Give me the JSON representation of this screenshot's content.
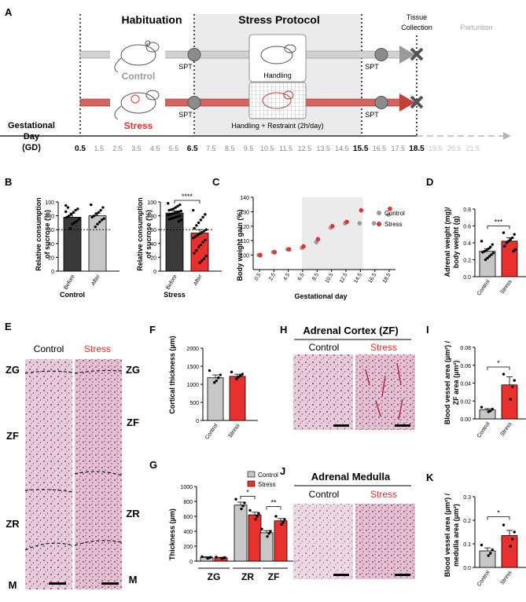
{
  "colors": {
    "control": "#c7c7c7",
    "stress": "#e8302c",
    "dark": "#3a3a3a",
    "shade": "#ebebeb",
    "pinkText": "#e0302a"
  },
  "panelA": {
    "letter": "A",
    "phase_habituation": "Habituation",
    "phase_stress": "Stress Protocol",
    "tissue": "Tissue",
    "collection": "Collection",
    "parturition": "Parturition",
    "control_label": "Control",
    "stress_label": "Stress",
    "spt": "SPT",
    "handling": "Handling",
    "handling_restraint": "Handling + Restraint (2h/day)",
    "gd_title1": "Gestational",
    "gd_title2": "Day",
    "gd_title3": "(GD)",
    "ticks": [
      "0.5",
      "1.5",
      "2.5",
      "3.5",
      "4.5",
      "5.5",
      "6.5",
      "7.5",
      "8.5",
      "9.5",
      "10.5",
      "11.5",
      "12.5",
      "13.5",
      "14.5",
      "15.5",
      "16.5",
      "17.5",
      "18.5",
      "19.5",
      "20.5",
      "21.5"
    ]
  },
  "panelB": {
    "letter": "B",
    "ylabel1": "Relative consumption",
    "ylabel2": "of sucrose (%)",
    "yticks": [
      "0",
      "20",
      "40",
      "60",
      "80",
      "100"
    ],
    "control_group": "Control",
    "stress_group": "Stress",
    "before": "Before",
    "after": "After",
    "sig": "****"
  },
  "panelC": {
    "letter": "C",
    "ylabel": "Body weight gain (%)",
    "xlabel": "Gestational day",
    "legend_control": "Control",
    "legend_stress": "Stress",
    "yticks": [
      "100",
      "110",
      "120",
      "130",
      "140"
    ],
    "xticks": [
      "0.5",
      "2.5",
      "4.5",
      "6.5",
      "8.5",
      "10.5",
      "12.5",
      "14.5",
      "16.5",
      "18.5"
    ]
  },
  "panelD": {
    "letter": "D",
    "ylabel1": "Adrenal weight (mg)/",
    "ylabel2": "body weight (g)",
    "yticks": [
      "0.0",
      "0.2",
      "0.4",
      "0.6",
      "0.8"
    ],
    "control": "Control",
    "stress": "Stress",
    "sig": "***"
  },
  "panelE": {
    "letter": "E",
    "control": "Control",
    "stress": "Stress",
    "zg": "ZG",
    "zf": "ZF",
    "zr": "ZR",
    "m": "M"
  },
  "panelF": {
    "letter": "F",
    "ylabel": "Cortical thickness (µm)",
    "yticks": [
      "0",
      "500",
      "1000",
      "1500",
      "2000"
    ],
    "control": "Control",
    "stress": "Stress"
  },
  "panelG": {
    "letter": "G",
    "ylabel": "Thickness (µm)",
    "yticks": [
      "0",
      "200",
      "400",
      "600",
      "800",
      "1000"
    ],
    "groups": [
      "ZG",
      "ZR",
      "ZF"
    ],
    "legend_control": "Control",
    "legend_stress": "Stress",
    "sig1": "*",
    "sig2": "**"
  },
  "panelH": {
    "letter": "H",
    "title": "Adrenal Cortex (ZF)",
    "control": "Control",
    "stress": "Stress"
  },
  "panelI": {
    "letter": "I",
    "ylabel1": "Blood vessel area (µm²) /",
    "ylabel2": "ZF area (µm²)",
    "yticks": [
      "0.00",
      "0.02",
      "0.04",
      "0.06",
      "0.08"
    ],
    "control": "Control",
    "stress": "Stress",
    "sig": "*"
  },
  "panelJ": {
    "letter": "J",
    "title": "Adrenal Medulla",
    "control": "Control",
    "stress": "Stress"
  },
  "panelK": {
    "letter": "K",
    "ylabel1": "Blood vessel area (µm²) /",
    "ylabel2": "medulla area (µm²)",
    "yticks": [
      "0.0",
      "0.1",
      "0.2",
      "0.3"
    ],
    "control": "Control",
    "stress": "Stress",
    "sig": "*"
  },
  "chart_data": [
    {
      "id": "B-control",
      "type": "bar",
      "title": "",
      "ylabel": "Relative consumption of sucrose (%)",
      "xlabel": "Control",
      "categories": [
        "Before",
        "After"
      ],
      "values": [
        78,
        80
      ],
      "ylim": [
        0,
        100
      ]
    },
    {
      "id": "B-stress",
      "type": "bar",
      "title": "",
      "ylabel": "Relative consumption of sucrose (%)",
      "xlabel": "Stress",
      "categories": [
        "Before",
        "After"
      ],
      "values": [
        84,
        55
      ],
      "ylim": [
        0,
        100
      ]
    },
    {
      "id": "C",
      "type": "scatter",
      "ylabel": "Body weight gain (%)",
      "xlabel": "Gestational day",
      "ylim": [
        90,
        140
      ],
      "series": [
        {
          "name": "Control",
          "x": [
            0.5,
            2.5,
            4.5,
            6.5,
            8.5,
            10.5,
            12.5,
            14.5,
            16.5,
            18.5
          ],
          "y": [
            100,
            102,
            104,
            105,
            109,
            119,
            122,
            122,
            122,
            128
          ]
        },
        {
          "name": "Stress",
          "x": [
            0.5,
            2.5,
            4.5,
            6.5,
            8.5,
            10.5,
            12.5,
            14.5,
            18.5
          ],
          "y": [
            100,
            102,
            104,
            106,
            111,
            120,
            123,
            131,
            132
          ]
        }
      ]
    },
    {
      "id": "D",
      "type": "bar",
      "ylabel": "Adrenal weight (mg)/ body weight (g)",
      "categories": [
        "Control",
        "Stress"
      ],
      "values": [
        0.3,
        0.42
      ],
      "ylim": [
        0,
        0.8
      ]
    },
    {
      "id": "F",
      "type": "bar",
      "ylabel": "Cortical thickness (µm)",
      "categories": [
        "Control",
        "Stress"
      ],
      "values": [
        1180,
        1220
      ],
      "ylim": [
        0,
        2000
      ]
    },
    {
      "id": "G",
      "type": "bar",
      "ylabel": "Thickness (µm)",
      "categories": [
        "ZG",
        "ZR",
        "ZF"
      ],
      "ylim": [
        0,
        1000
      ],
      "series": [
        {
          "name": "Control",
          "values": [
            50,
            750,
            380
          ]
        },
        {
          "name": "Stress",
          "values": [
            45,
            620,
            540
          ]
        }
      ]
    },
    {
      "id": "I",
      "type": "bar",
      "ylabel": "Blood vessel area (µm²) / ZF area (µm²)",
      "categories": [
        "Control",
        "Stress"
      ],
      "values": [
        0.01,
        0.038
      ],
      "ylim": [
        0,
        0.08
      ]
    },
    {
      "id": "K",
      "type": "bar",
      "ylabel": "Blood vessel area (µm²) / medulla area (µm²)",
      "categories": [
        "Control",
        "Stress"
      ],
      "values": [
        0.07,
        0.135
      ],
      "ylim": [
        0,
        0.3
      ]
    }
  ]
}
